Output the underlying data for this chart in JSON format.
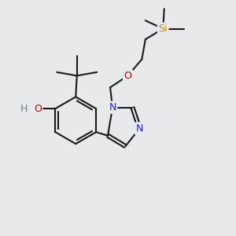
{
  "bg_color": "#e8e9ea",
  "bond_color": "#1a1a1a",
  "bond_lw": 1.5,
  "atom_colors": {
    "O": "#cc0000",
    "N": "#2222cc",
    "Si": "#cc8800",
    "H": "#5588aa",
    "C": "#1a1a1a"
  },
  "font_size_atom": 9.0,
  "figsize": [
    3.0,
    3.0
  ],
  "dpi": 100,
  "xlim": [
    0,
    10
  ],
  "ylim": [
    0,
    10
  ]
}
